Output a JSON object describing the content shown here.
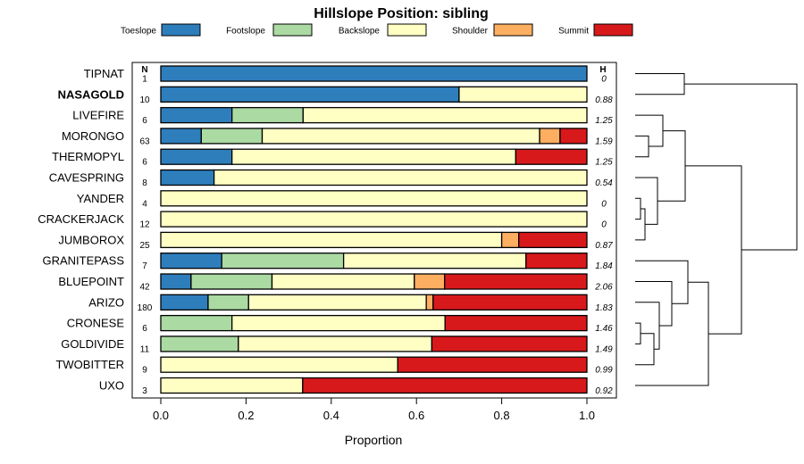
{
  "chart_data": {
    "type": "bar",
    "orientation": "horizontal",
    "stacked": true,
    "title": "Hillslope Position: sibling",
    "xlabel": "Proportion",
    "xlim": [
      0,
      1
    ],
    "xticks": [
      "0.0",
      "0.2",
      "0.4",
      "0.6",
      "0.8",
      "1.0"
    ],
    "n_header": "N",
    "h_header": "H",
    "legend": [
      {
        "name": "Toeslope",
        "color": "#2e7ebc"
      },
      {
        "name": "Footslope",
        "color": "#abdaa3"
      },
      {
        "name": "Backslope",
        "color": "#ffffc4"
      },
      {
        "name": "Shoulder",
        "color": "#fdae61"
      },
      {
        "name": "Summit",
        "color": "#d7191c"
      }
    ],
    "rows": [
      {
        "label": "TIPNAT",
        "bold": false,
        "n": "1",
        "h": "0",
        "values": [
          1.0,
          0,
          0,
          0,
          0
        ]
      },
      {
        "label": "NASAGOLD",
        "bold": true,
        "n": "10",
        "h": "0.88",
        "values": [
          0.7,
          0,
          0.3,
          0,
          0
        ]
      },
      {
        "label": "LIVEFIRE",
        "bold": false,
        "n": "6",
        "h": "1.25",
        "values": [
          0.167,
          0.167,
          0.666,
          0,
          0
        ]
      },
      {
        "label": "MORONGO",
        "bold": false,
        "n": "63",
        "h": "1.59",
        "values": [
          0.095,
          0.143,
          0.651,
          0.048,
          0.063
        ]
      },
      {
        "label": "THERMOPYL",
        "bold": false,
        "n": "6",
        "h": "1.25",
        "values": [
          0.167,
          0,
          0.666,
          0,
          0.167
        ]
      },
      {
        "label": "CAVESPRING",
        "bold": false,
        "n": "8",
        "h": "0.54",
        "values": [
          0.125,
          0,
          0.875,
          0,
          0
        ]
      },
      {
        "label": "YANDER",
        "bold": false,
        "n": "4",
        "h": "0",
        "values": [
          0,
          0,
          1.0,
          0,
          0
        ]
      },
      {
        "label": "CRACKERJACK",
        "bold": false,
        "n": "12",
        "h": "0",
        "values": [
          0,
          0,
          1.0,
          0,
          0
        ]
      },
      {
        "label": "JUMBOROX",
        "bold": false,
        "n": "25",
        "h": "0.87",
        "values": [
          0,
          0,
          0.8,
          0.04,
          0.16
        ]
      },
      {
        "label": "GRANITEPASS",
        "bold": false,
        "n": "7",
        "h": "1.84",
        "values": [
          0.143,
          0.286,
          0.428,
          0,
          0.143
        ]
      },
      {
        "label": "BLUEPOINT",
        "bold": false,
        "n": "42",
        "h": "2.06",
        "values": [
          0.071,
          0.19,
          0.334,
          0.071,
          0.334
        ]
      },
      {
        "label": "ARIZO",
        "bold": false,
        "n": "180",
        "h": "1.83",
        "values": [
          0.111,
          0.095,
          0.417,
          0.016,
          0.361
        ]
      },
      {
        "label": "CRONESE",
        "bold": false,
        "n": "6",
        "h": "1.46",
        "values": [
          0,
          0.167,
          0.5,
          0,
          0.333
        ]
      },
      {
        "label": "GOLDIVIDE",
        "bold": false,
        "n": "11",
        "h": "1.49",
        "values": [
          0,
          0.182,
          0.454,
          0,
          0.364
        ]
      },
      {
        "label": "TWOBITTER",
        "bold": false,
        "n": "9",
        "h": "0.99",
        "values": [
          0,
          0,
          0.556,
          0,
          0.444
        ]
      },
      {
        "label": "UXO",
        "bold": false,
        "n": "3",
        "h": "0.92",
        "values": [
          0,
          0,
          0.333,
          0,
          0.667
        ]
      }
    ]
  }
}
